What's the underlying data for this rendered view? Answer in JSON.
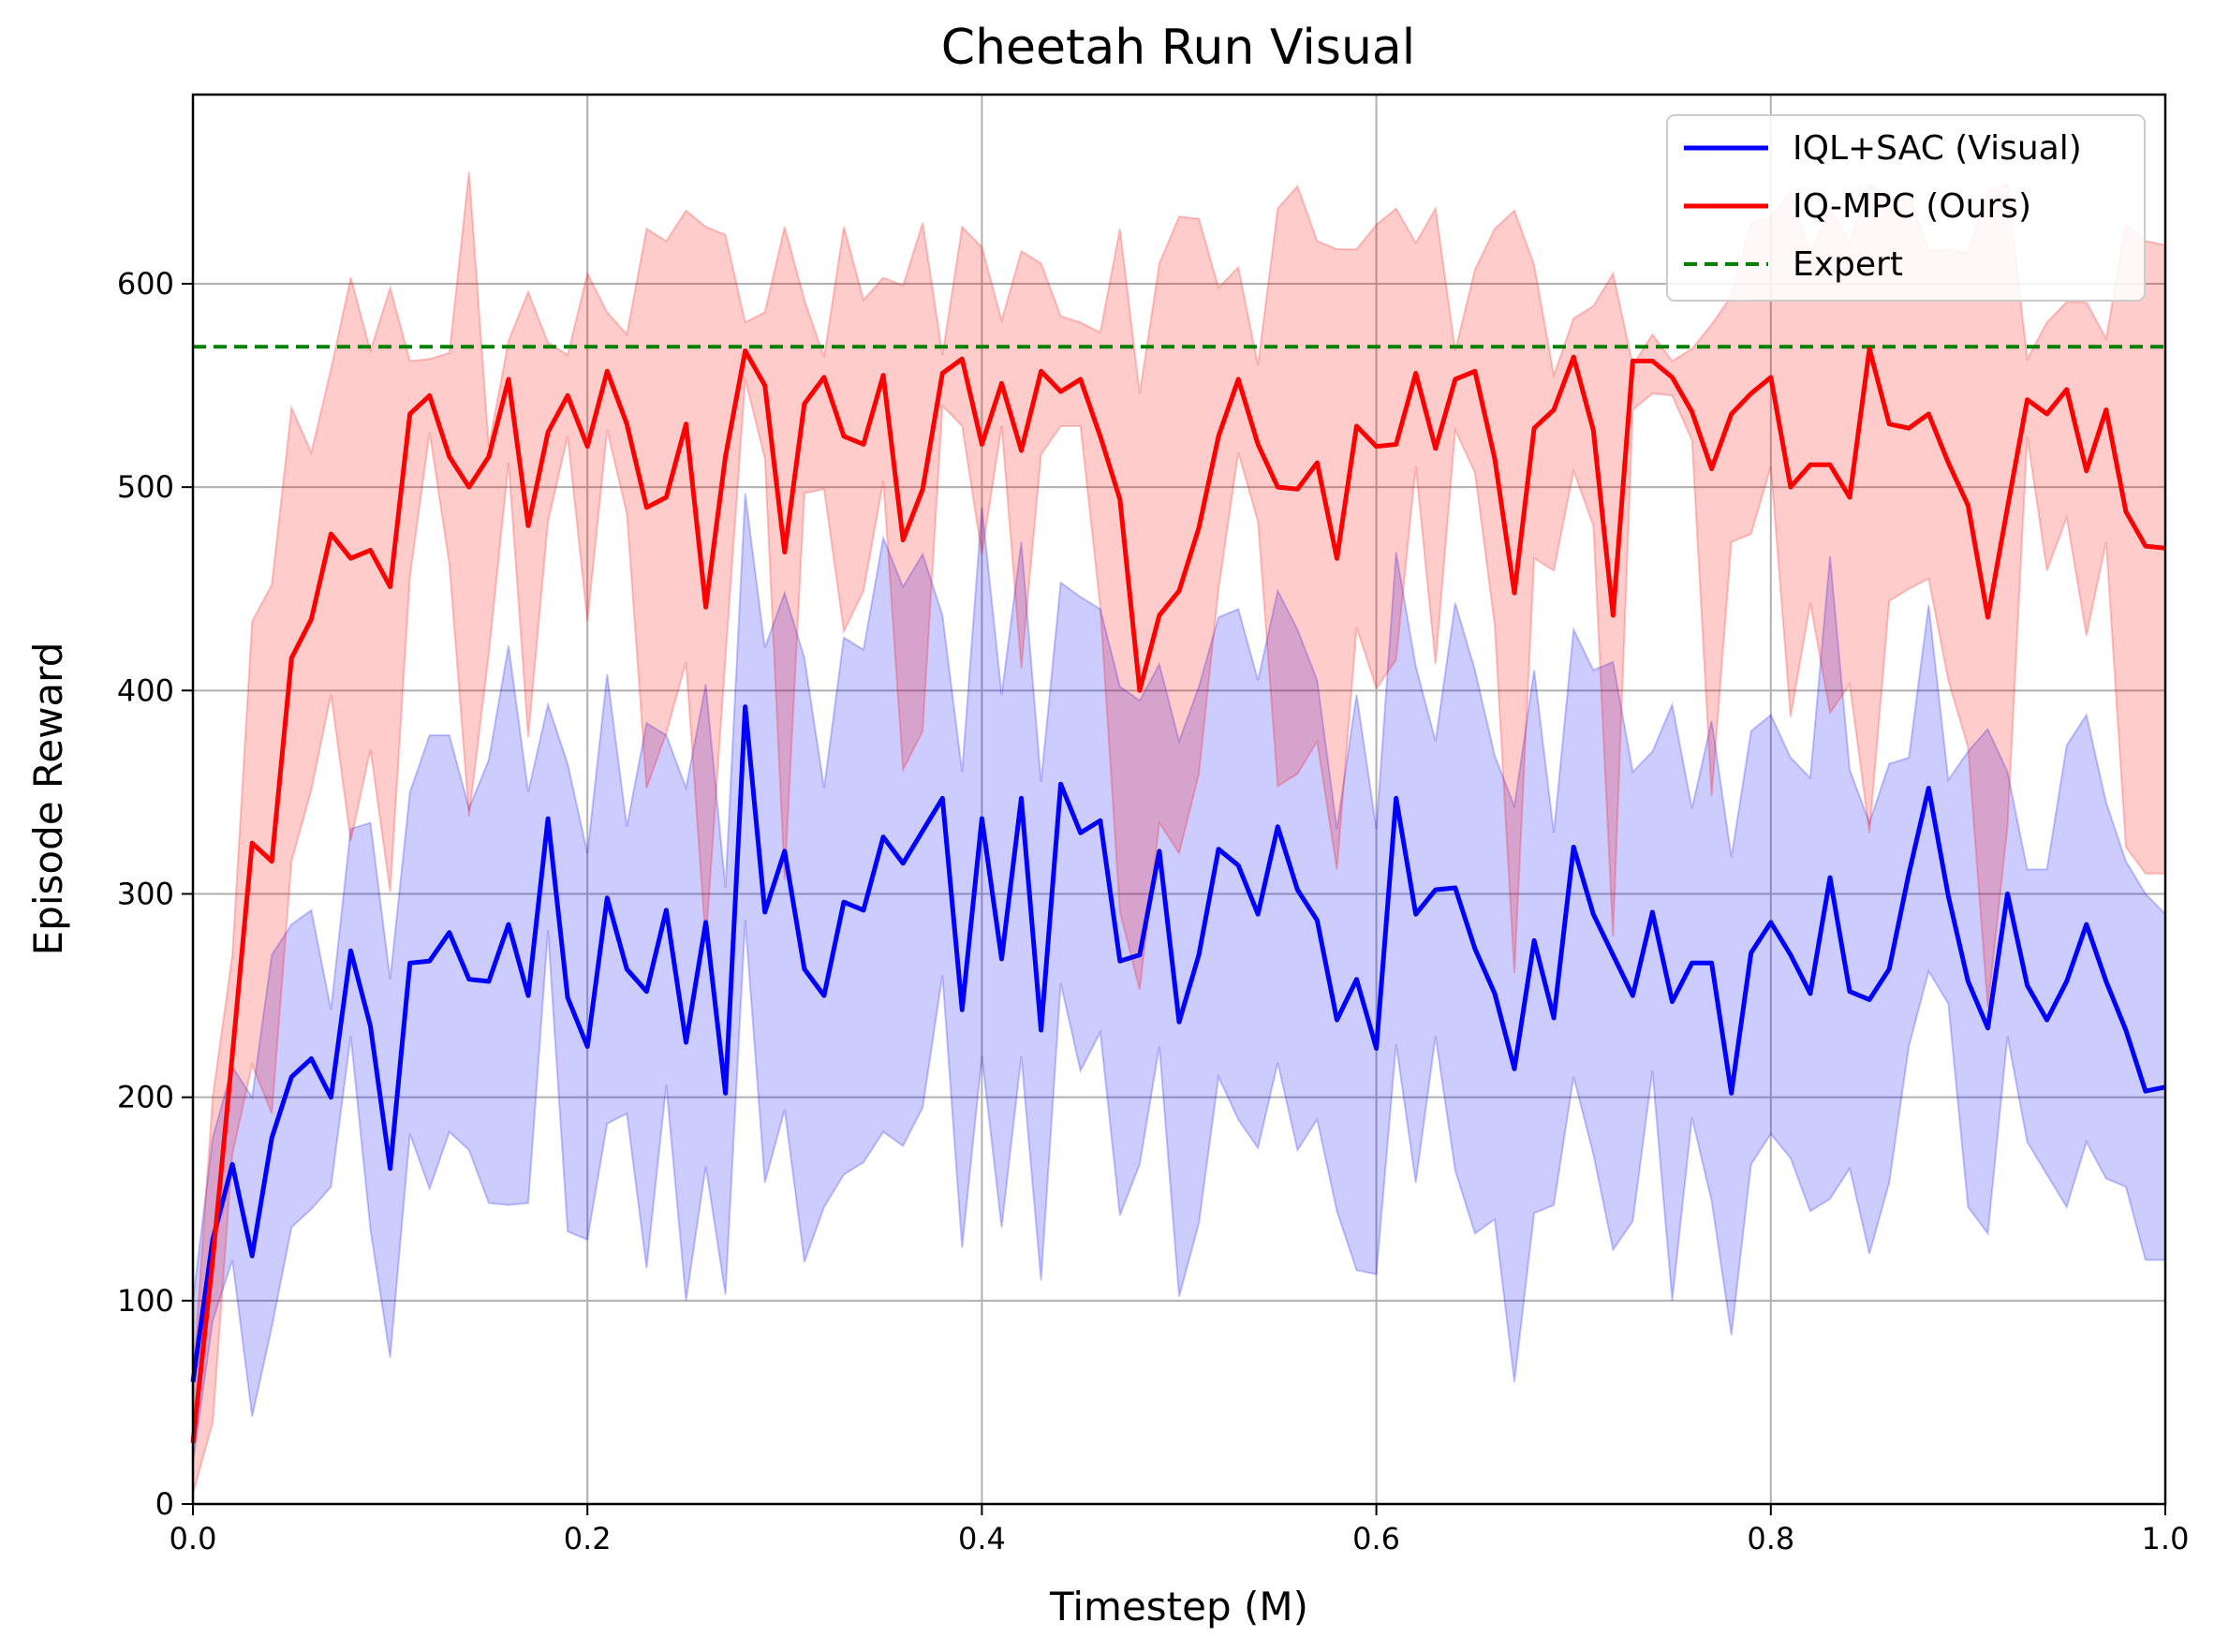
{
  "chart_data": {
    "type": "line",
    "title": "Cheetah Run Visual",
    "xlabel": "Timestep (M)",
    "ylabel": "Episode Reward",
    "xlim": [
      0.0,
      1.0
    ],
    "ylim": [
      0,
      693
    ],
    "xticks": [
      0.0,
      0.2,
      0.4,
      0.6,
      0.8,
      1.0
    ],
    "xtick_labels": [
      "0.0",
      "0.2",
      "0.4",
      "0.6",
      "0.8",
      "1.0"
    ],
    "yticks": [
      0,
      100,
      200,
      300,
      400,
      500,
      600
    ],
    "ytick_labels": [
      "0",
      "100",
      "200",
      "300",
      "400",
      "500",
      "600"
    ],
    "grid": true,
    "legend_position": "top-right",
    "expert": {
      "name": "Expert",
      "value": 569,
      "color": "#008000",
      "style": "dashed"
    },
    "series": [
      {
        "name": "IQL+SAC (Visual)",
        "color": "#0000ff",
        "x": [
          0.0,
          0.01,
          0.02,
          0.03,
          0.04,
          0.05,
          0.06,
          0.07,
          0.08,
          0.09,
          0.1,
          0.11,
          0.12,
          0.13,
          0.14,
          0.15,
          0.16,
          0.17,
          0.18,
          0.19,
          0.2,
          0.21,
          0.22,
          0.23,
          0.24,
          0.25,
          0.26,
          0.27,
          0.28,
          0.29,
          0.3,
          0.31,
          0.32,
          0.33,
          0.34,
          0.35,
          0.36,
          0.37,
          0.38,
          0.39,
          0.4,
          0.41,
          0.42,
          0.43,
          0.44,
          0.45,
          0.46,
          0.47,
          0.48,
          0.49,
          0.5,
          0.51,
          0.52,
          0.53,
          0.54,
          0.55,
          0.56,
          0.57,
          0.58,
          0.59,
          0.6,
          0.61,
          0.62,
          0.63,
          0.64,
          0.65,
          0.66,
          0.67,
          0.68,
          0.69,
          0.7,
          0.71,
          0.72,
          0.73,
          0.74,
          0.75,
          0.76,
          0.77,
          0.78,
          0.79,
          0.8,
          0.81,
          0.82,
          0.83,
          0.84,
          0.85,
          0.86,
          0.87,
          0.88,
          0.89,
          0.9,
          0.91,
          0.92,
          0.93,
          0.94,
          0.95,
          0.96,
          0.97,
          0.98,
          0.99,
          1.0
        ],
        "mean": [
          60,
          130,
          167,
          122,
          180,
          210,
          219,
          200,
          272,
          235,
          165,
          266,
          267,
          281,
          258,
          257,
          285,
          250,
          337,
          249,
          225,
          298,
          263,
          252,
          292,
          227,
          286,
          202,
          392,
          291,
          321,
          263,
          250,
          296,
          292,
          328,
          315,
          331,
          347,
          243,
          337,
          268,
          347,
          233,
          354,
          330,
          336,
          267,
          270,
          321,
          237,
          270,
          322,
          314,
          290,
          333,
          302,
          287,
          238,
          258,
          224,
          347,
          290,
          302,
          303,
          273,
          251,
          214,
          277,
          239,
          323,
          290,
          270,
          250,
          291,
          247,
          266,
          266,
          202,
          271,
          286,
          270,
          251,
          308,
          252,
          248,
          263,
          310,
          352,
          299,
          257,
          234,
          300,
          255,
          238,
          257,
          285,
          257,
          233,
          203,
          205
        ],
        "upper": [
          100,
          180,
          215,
          200,
          270,
          285,
          292,
          243,
          332,
          335,
          258,
          350,
          378,
          378,
          342,
          366,
          422,
          350,
          393,
          364,
          320,
          408,
          333,
          384,
          378,
          352,
          403,
          303,
          497,
          421,
          448,
          416,
          352,
          426,
          420,
          475,
          451,
          467,
          437,
          360,
          490,
          398,
          473,
          355,
          453,
          446,
          440,
          402,
          395,
          413,
          375,
          402,
          436,
          440,
          405,
          449,
          430,
          405,
          332,
          398,
          332,
          468,
          412,
          375,
          443,
          410,
          368,
          343,
          410,
          330,
          430,
          410,
          414,
          360,
          370,
          393,
          342,
          385,
          318,
          380,
          388,
          367,
          357,
          466,
          361,
          335,
          364,
          367,
          442,
          356,
          370,
          381,
          360,
          312,
          312,
          373,
          388,
          345,
          316,
          300,
          290
        ],
        "lower": [
          20,
          90,
          120,
          43,
          87,
          136,
          145,
          156,
          230,
          135,
          72,
          182,
          155,
          183,
          174,
          148,
          147,
          148,
          282,
          134,
          130,
          187,
          192,
          116,
          206,
          100,
          166,
          103,
          287,
          158,
          194,
          119,
          146,
          162,
          168,
          183,
          176,
          195,
          260,
          126,
          220,
          136,
          220,
          110,
          256,
          213,
          232,
          142,
          167,
          225,
          102,
          138,
          210,
          189,
          175,
          217,
          174,
          189,
          144,
          115,
          113,
          226,
          158,
          230,
          164,
          133,
          140,
          60,
          143,
          147,
          210,
          172,
          125,
          139,
          213,
          100,
          190,
          149,
          83,
          167,
          182,
          170,
          144,
          150,
          165,
          123,
          158,
          225,
          262,
          246,
          146,
          133,
          230,
          178,
          162,
          146,
          178,
          160,
          156,
          120,
          120
        ]
      },
      {
        "name": "IQ-MPC (Ours)",
        "color": "#ff0000",
        "x": [
          0.0,
          0.01,
          0.02,
          0.03,
          0.04,
          0.05,
          0.06,
          0.07,
          0.08,
          0.09,
          0.1,
          0.11,
          0.12,
          0.13,
          0.14,
          0.15,
          0.16,
          0.17,
          0.18,
          0.19,
          0.2,
          0.21,
          0.22,
          0.23,
          0.24,
          0.25,
          0.26,
          0.27,
          0.28,
          0.29,
          0.3,
          0.31,
          0.32,
          0.33,
          0.34,
          0.35,
          0.36,
          0.37,
          0.38,
          0.39,
          0.4,
          0.41,
          0.42,
          0.43,
          0.44,
          0.45,
          0.46,
          0.47,
          0.48,
          0.49,
          0.5,
          0.51,
          0.52,
          0.53,
          0.54,
          0.55,
          0.56,
          0.57,
          0.58,
          0.59,
          0.6,
          0.61,
          0.62,
          0.63,
          0.64,
          0.65,
          0.66,
          0.67,
          0.68,
          0.69,
          0.7,
          0.71,
          0.72,
          0.73,
          0.74,
          0.75,
          0.76,
          0.77,
          0.78,
          0.79,
          0.8,
          0.81,
          0.82,
          0.83,
          0.84,
          0.85,
          0.86,
          0.87,
          0.88,
          0.89,
          0.9,
          0.91,
          0.92,
          0.93,
          0.94,
          0.95,
          0.96,
          0.97,
          0.98,
          0.99,
          1.0
        ],
        "mean": [
          30,
          120,
          221,
          325,
          316,
          416,
          435,
          477,
          465,
          469,
          451,
          536,
          545,
          515,
          500,
          515,
          553,
          481,
          527,
          545,
          520,
          557,
          531,
          490,
          495,
          531,
          441,
          515,
          567,
          550,
          468,
          541,
          554,
          525,
          521,
          555,
          474,
          499,
          556,
          563,
          521,
          551,
          518,
          557,
          547,
          553,
          525,
          494,
          400,
          437,
          449,
          480,
          525,
          553,
          521,
          500,
          499,
          512,
          465,
          530,
          520,
          521,
          556,
          519,
          553,
          557,
          514,
          448,
          529,
          538,
          564,
          528,
          437,
          562,
          562,
          554,
          537,
          509,
          536,
          546,
          554,
          500,
          511,
          511,
          495,
          568,
          531,
          529,
          536,
          512,
          491,
          436,
          490,
          543,
          536,
          548,
          508,
          538,
          488,
          471,
          470
        ],
        "upper": [
          60,
          200,
          270,
          434,
          452,
          539,
          517,
          558,
          603,
          567,
          598,
          562,
          563,
          566,
          655,
          520,
          572,
          596,
          571,
          565,
          605,
          586,
          575,
          627,
          621,
          636,
          628,
          624,
          581,
          586,
          628,
          592,
          564,
          628,
          592,
          603,
          599,
          630,
          565,
          628,
          618,
          582,
          616,
          610,
          584,
          581,
          576,
          627,
          546,
          610,
          633,
          632,
          598,
          608,
          560,
          637,
          648,
          621,
          617,
          617,
          629,
          637,
          620,
          637,
          567,
          607,
          627,
          636,
          609,
          555,
          583,
          589,
          605,
          560,
          575,
          562,
          568,
          580,
          594,
          630,
          633,
          645,
          614,
          637,
          620,
          649,
          641,
          643,
          616,
          617,
          615,
          645,
          649,
          563,
          581,
          591,
          591,
          573,
          629,
          621,
          619
        ],
        "lower": [
          5,
          40,
          172,
          216,
          192,
          316,
          351,
          398,
          326,
          371,
          301,
          456,
          527,
          462,
          338,
          418,
          512,
          377,
          483,
          525,
          434,
          528,
          487,
          352,
          379,
          414,
          276,
          416,
          553,
          514,
          307,
          497,
          499,
          429,
          449,
          503,
          361,
          380,
          540,
          530,
          467,
          530,
          411,
          516,
          530,
          530,
          441,
          291,
          253,
          335,
          320,
          359,
          450,
          517,
          483,
          353,
          359,
          375,
          312,
          431,
          401,
          415,
          510,
          413,
          528,
          507,
          432,
          261,
          465,
          459,
          508,
          481,
          279,
          538,
          546,
          545,
          523,
          348,
          473,
          477,
          510,
          387,
          443,
          389,
          403,
          330,
          444,
          450,
          455,
          405,
          372,
          244,
          333,
          525,
          459,
          485,
          427,
          473,
          323,
          310,
          310
        ]
      }
    ]
  }
}
